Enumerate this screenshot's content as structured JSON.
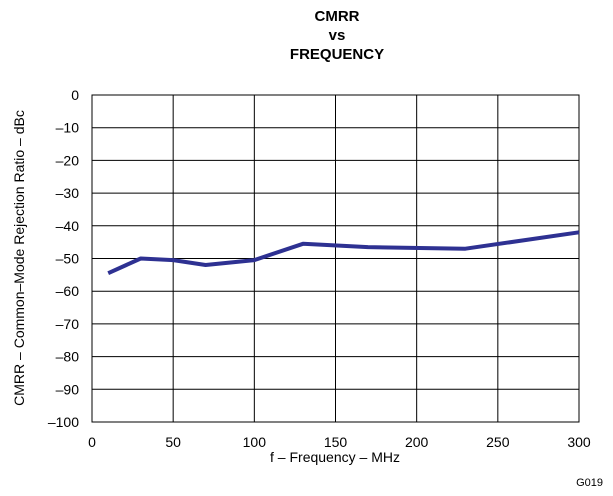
{
  "chart_data": {
    "type": "line",
    "title_lines": [
      "CMRR",
      "vs",
      "FREQUENCY"
    ],
    "xlabel": "f – Frequency – MHz",
    "ylabel": "CMRR – Common–Mode Rejection Ratio – dBc",
    "xlim": [
      0,
      300
    ],
    "ylim": [
      -100,
      0
    ],
    "x_ticks": [
      0,
      50,
      100,
      150,
      200,
      250,
      300
    ],
    "y_ticks": [
      0,
      -10,
      -20,
      -30,
      -40,
      -50,
      -60,
      -70,
      -80,
      -90,
      -100
    ],
    "x_tick_labels": [
      "0",
      "50",
      "100",
      "150",
      "200",
      "250",
      "300"
    ],
    "y_tick_labels": [
      "0",
      "–10",
      "–20",
      "–30",
      "–40",
      "–50",
      "–60",
      "–70",
      "–80",
      "–90",
      "–100"
    ],
    "grid": true,
    "series": [
      {
        "color": "#2e3192",
        "x": [
          10,
          30,
          50,
          70,
          100,
          130,
          170,
          230,
          300
        ],
        "y": [
          -54.5,
          -50,
          -50.5,
          -52,
          -50.5,
          -45.5,
          -46.5,
          -47,
          -42
        ]
      }
    ],
    "figure_id": "G019"
  }
}
